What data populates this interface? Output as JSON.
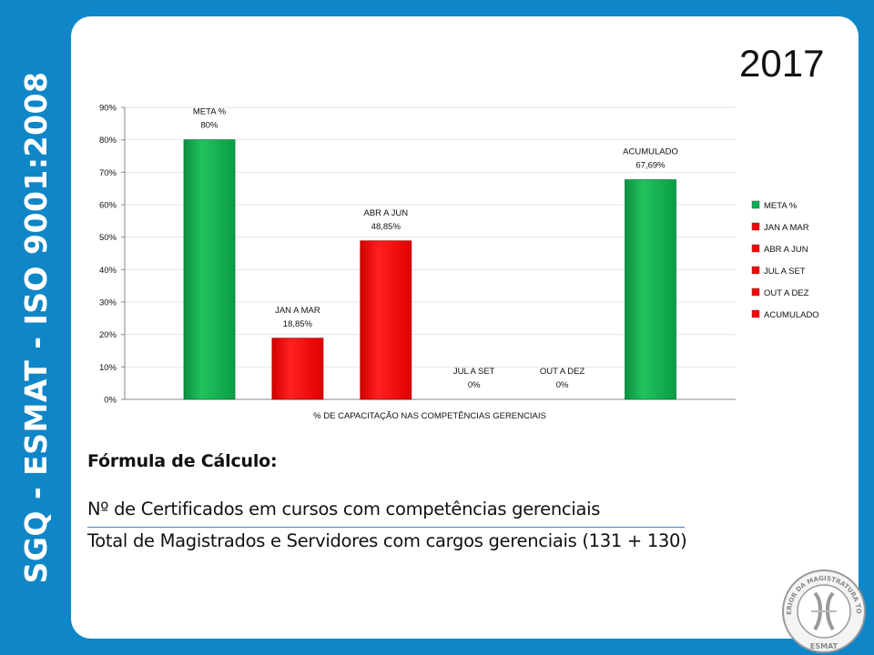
{
  "sidebar": {
    "text": "SGQ - ESMAT - ISO 9001:2008"
  },
  "header": {
    "year": "2017"
  },
  "colors": {
    "background": "#0f86c8",
    "green": "#00b050",
    "red": "#ff0000"
  },
  "chart_data": {
    "type": "bar",
    "xlabel": "% DE CAPACITAÇÃO NAS COMPETÊNCIAS  GERENCIAIS",
    "ylim": [
      0,
      90
    ],
    "yticks": [
      "0%",
      "10%",
      "20%",
      "30%",
      "40%",
      "50%",
      "60%",
      "70%",
      "80%",
      "90%"
    ],
    "grid": true,
    "legend_position": "right",
    "series": [
      {
        "name": "META %",
        "value": 80,
        "label": "80%",
        "color": "#00b050"
      },
      {
        "name": "JAN A MAR",
        "value": 18.85,
        "label": "18,85%",
        "color": "#ff0000"
      },
      {
        "name": "ABR A JUN",
        "value": 48.85,
        "label": "48,85%",
        "color": "#ff0000"
      },
      {
        "name": "JUL A SET",
        "value": 0,
        "label": "0%",
        "color": "#ff0000"
      },
      {
        "name": "OUT A DEZ",
        "value": 0,
        "label": "0%",
        "color": "#ff0000"
      },
      {
        "name": "ACUMULADO",
        "value": 67.69,
        "label": "67,69%",
        "color": "#00b050"
      }
    ],
    "legend": [
      {
        "name": "META %",
        "color": "#00b050"
      },
      {
        "name": "JAN A MAR",
        "color": "#ff0000"
      },
      {
        "name": "ABR A JUN",
        "color": "#ff0000"
      },
      {
        "name": "JUL A SET",
        "color": "#ff0000"
      },
      {
        "name": "OUT A DEZ",
        "color": "#ff0000"
      },
      {
        "name": "ACUMULADO",
        "color": "#ff0000"
      }
    ]
  },
  "formula": {
    "title": "Fórmula de Cálculo:",
    "numerator": "Nº de Certificados em cursos com competências gerenciais",
    "denominator": "Total de Magistrados e Servidores com cargos gerenciais (131 + 130)"
  },
  "seal": {
    "text": "ESCOLA SUPERIOR DA MAGISTRATURA TOCANTINENSE",
    "bottom": "ESMAT"
  }
}
